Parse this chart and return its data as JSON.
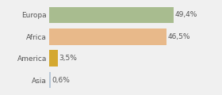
{
  "categories": [
    "Europa",
    "Africa",
    "America",
    "Asia"
  ],
  "values": [
    49.4,
    46.5,
    3.5,
    0.6
  ],
  "labels": [
    "49,4%",
    "46,5%",
    "3,5%",
    "0,6%"
  ],
  "bar_colors": [
    "#a8bc8f",
    "#e8b98a",
    "#d4a830",
    "#b8c8d8"
  ],
  "background_color": "#f0f0f0",
  "xlim": [
    0,
    58
  ],
  "bar_height": 0.75,
  "label_fontsize": 6.5,
  "tick_fontsize": 6.5,
  "grid_color": "#ffffff",
  "grid_lw": 1.0
}
